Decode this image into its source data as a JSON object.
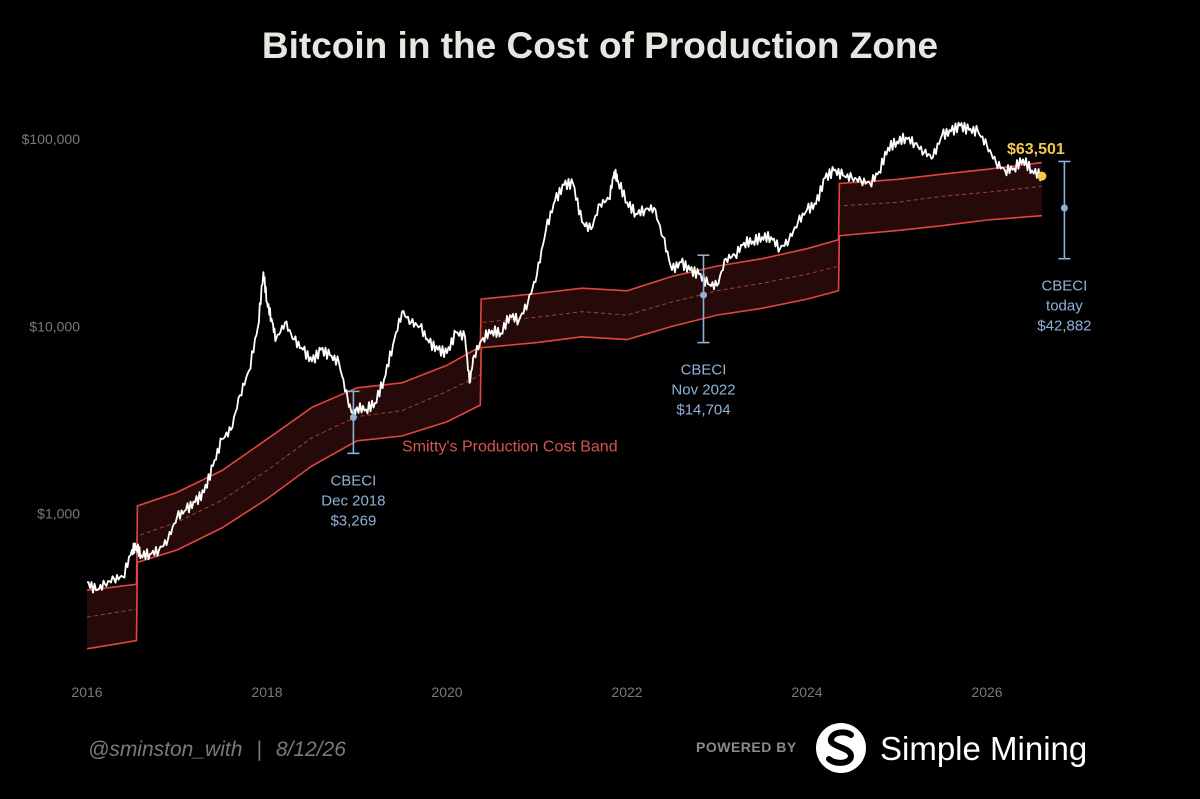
{
  "footer": {
    "handle": "@sminston_with",
    "separator": "|",
    "date": "8/12/26",
    "powered_by": "POWERED BY",
    "brand_name": "Simple Mining",
    "brand_logo_icon": "simple-mining-s-logo-icon"
  },
  "colors": {
    "background": "#000000",
    "price_line": "#ffffff",
    "band_edge": "#e0463f",
    "band_fill": "#2a0a0a",
    "band_mid": "#a0403a",
    "annotation": "#8fb1d9",
    "current_price": "#f2c94c"
  },
  "chart_data": {
    "type": "line",
    "title": "Bitcoin in the Cost of Production Zone",
    "xlabel": "",
    "ylabel": "",
    "y_scale": "log",
    "xlim": [
      2016.0,
      2027.2
    ],
    "ylim": [
      150,
      170000
    ],
    "grid": false,
    "x_ticks": [
      {
        "value": 2016,
        "label": "2016"
      },
      {
        "value": 2018,
        "label": "2018"
      },
      {
        "value": 2020,
        "label": "2020"
      },
      {
        "value": 2022,
        "label": "2022"
      },
      {
        "value": 2024,
        "label": "2024"
      },
      {
        "value": 2026,
        "label": "2026"
      }
    ],
    "y_ticks": [
      {
        "value": 1000,
        "label": "$1,000"
      },
      {
        "value": 10000,
        "label": "$10,000"
      },
      {
        "value": 100000,
        "label": "$100,000"
      }
    ],
    "series": [
      {
        "role": "price",
        "x": [
          2016.0,
          2016.1,
          2016.2,
          2016.3,
          2016.4,
          2016.5,
          2016.55,
          2016.6,
          2016.7,
          2016.8,
          2016.9,
          2017.0,
          2017.1,
          2017.2,
          2017.3,
          2017.4,
          2017.5,
          2017.6,
          2017.7,
          2017.8,
          2017.9,
          2017.96,
          2018.0,
          2018.05,
          2018.1,
          2018.2,
          2018.3,
          2018.4,
          2018.5,
          2018.6,
          2018.7,
          2018.8,
          2018.9,
          2018.96,
          2019.0,
          2019.1,
          2019.2,
          2019.3,
          2019.4,
          2019.5,
          2019.6,
          2019.7,
          2019.8,
          2019.9,
          2020.0,
          2020.1,
          2020.2,
          2020.25,
          2020.3,
          2020.4,
          2020.5,
          2020.6,
          2020.7,
          2020.8,
          2020.9,
          2021.0,
          2021.1,
          2021.2,
          2021.3,
          2021.4,
          2021.5,
          2021.6,
          2021.7,
          2021.8,
          2021.86,
          2021.9,
          2022.0,
          2022.1,
          2022.2,
          2022.3,
          2022.4,
          2022.5,
          2022.6,
          2022.7,
          2022.8,
          2022.9,
          2023.0,
          2023.1,
          2023.2,
          2023.3,
          2023.4,
          2023.5,
          2023.6,
          2023.7,
          2023.8,
          2023.9,
          2024.0,
          2024.1,
          2024.2,
          2024.3,
          2024.4,
          2024.5,
          2024.6,
          2024.7,
          2024.8,
          2024.9,
          2025.0,
          2025.1,
          2025.2,
          2025.3,
          2025.4,
          2025.5,
          2025.6,
          2025.7,
          2025.8,
          2025.9,
          2026.0,
          2026.1,
          2026.2,
          2026.3,
          2026.4,
          2026.5,
          2026.61
        ],
        "y": [
          430,
          390,
          420,
          450,
          460,
          640,
          670,
          600,
          610,
          640,
          730,
          960,
          1050,
          1150,
          1300,
          1800,
          2500,
          2800,
          4300,
          5800,
          10000,
          19500,
          13500,
          11000,
          8500,
          10500,
          8500,
          7500,
          6500,
          7500,
          7000,
          6400,
          4000,
          3300,
          3700,
          3600,
          3900,
          5200,
          8000,
          12000,
          10500,
          10000,
          8200,
          7500,
          7200,
          9300,
          8800,
          5000,
          7000,
          8700,
          9500,
          9200,
          11500,
          10800,
          13500,
          19000,
          33000,
          47000,
          57000,
          58000,
          36000,
          33000,
          45000,
          48000,
          67000,
          60000,
          46000,
          40000,
          42000,
          43000,
          30000,
          20000,
          22000,
          20000,
          19000,
          16800,
          16500,
          23000,
          24000,
          28000,
          28500,
          30000,
          30000,
          26000,
          29000,
          36000,
          42000,
          45000,
          62000,
          68000,
          64000,
          62000,
          60000,
          58000,
          67000,
          90000,
          97000,
          102000,
          95000,
          85000,
          80000,
          105000,
          110000,
          118000,
          112000,
          110000,
          92000,
          75000,
          68000,
          70000,
          78000,
          68000,
          63501
        ]
      },
      {
        "role": "band-upper",
        "x": [
          2016.0,
          2016.55,
          2016.56,
          2017.0,
          2017.5,
          2018.0,
          2018.5,
          2019.0,
          2019.5,
          2020.0,
          2020.37,
          2020.38,
          2021.0,
          2021.5,
          2022.0,
          2022.5,
          2023.0,
          2023.5,
          2024.0,
          2024.35,
          2024.36,
          2025.0,
          2025.5,
          2026.0,
          2026.61
        ],
        "y": [
          390,
          420,
          1100,
          1300,
          1700,
          2500,
          3700,
          4700,
          5000,
          6200,
          7800,
          14000,
          15000,
          16000,
          15500,
          18500,
          21000,
          23000,
          26000,
          29000,
          58000,
          61000,
          65000,
          69000,
          75000
        ]
      },
      {
        "role": "band-mid",
        "x": [
          2016.0,
          2016.55,
          2016.56,
          2017.0,
          2017.5,
          2018.0,
          2018.5,
          2019.0,
          2019.5,
          2020.0,
          2020.37,
          2020.38,
          2021.0,
          2021.5,
          2022.0,
          2022.5,
          2023.0,
          2023.5,
          2024.0,
          2024.35,
          2024.36,
          2025.0,
          2025.5,
          2026.0,
          2026.61
        ],
        "y": [
          280,
          310,
          760,
          900,
          1180,
          1700,
          2550,
          3300,
          3550,
          4500,
          5500,
          10500,
          11200,
          12000,
          11500,
          13500,
          15500,
          17000,
          19000,
          21000,
          44000,
          46000,
          49500,
          52000,
          56000
        ]
      },
      {
        "role": "band-lower",
        "x": [
          2016.0,
          2016.55,
          2016.56,
          2017.0,
          2017.5,
          2018.0,
          2018.5,
          2019.0,
          2019.5,
          2020.0,
          2020.37,
          2020.38,
          2021.0,
          2021.5,
          2022.0,
          2022.5,
          2023.0,
          2023.5,
          2024.0,
          2024.35,
          2024.36,
          2025.0,
          2025.5,
          2026.0,
          2026.61
        ],
        "y": [
          190,
          210,
          550,
          640,
          840,
          1200,
          1800,
          2450,
          2600,
          3100,
          3800,
          7700,
          8200,
          8800,
          8500,
          10000,
          11500,
          12500,
          14000,
          15500,
          30500,
          32500,
          34500,
          37000,
          39000
        ]
      }
    ],
    "band_label": {
      "text": "Smitty's Production Cost Band",
      "x": 2019.5,
      "y": 2150
    },
    "current_price": {
      "x": 2026.61,
      "y": 63501,
      "label": "$63,501"
    },
    "cbeci": [
      {
        "x": 2018.96,
        "y": 3269,
        "low": 2100,
        "high": 4500,
        "lines": [
          "CBECI",
          "Dec 2018",
          "$3,269"
        ]
      },
      {
        "x": 2022.85,
        "y": 14704,
        "low": 8200,
        "high": 24000,
        "lines": [
          "CBECI",
          "Nov 2022",
          "$14,704"
        ]
      },
      {
        "x": 2026.86,
        "y": 42882,
        "low": 23000,
        "high": 76000,
        "lines": [
          "CBECI",
          "today",
          "$42,882"
        ]
      }
    ]
  }
}
